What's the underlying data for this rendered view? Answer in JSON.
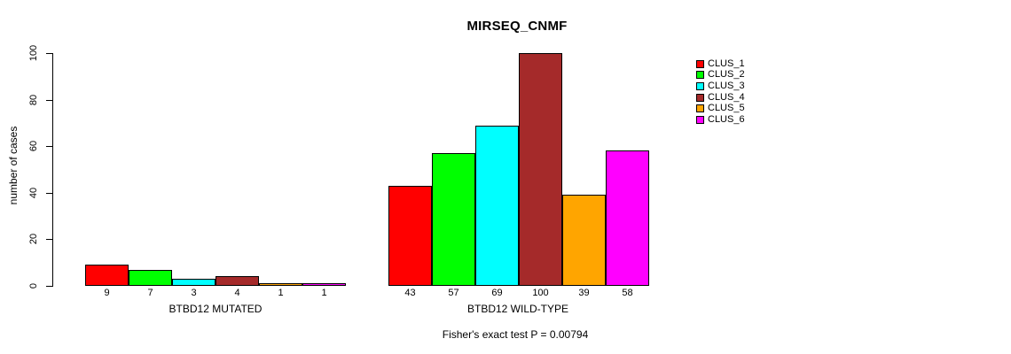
{
  "chart_data": {
    "type": "bar",
    "title": "MIRSEQ_CNMF",
    "ylabel": "number of cases",
    "ylim": [
      0,
      100
    ],
    "yticks": [
      0,
      20,
      40,
      60,
      80,
      100
    ],
    "grid": false,
    "legend_position": "right",
    "series": [
      {
        "name": "CLUS_1",
        "color": "#FF0000"
      },
      {
        "name": "CLUS_2",
        "color": "#00FF00"
      },
      {
        "name": "CLUS_3",
        "color": "#00FFFF"
      },
      {
        "name": "CLUS_4",
        "color": "#A52A2A"
      },
      {
        "name": "CLUS_5",
        "color": "#FFA500"
      },
      {
        "name": "CLUS_6",
        "color": "#FF00FF"
      }
    ],
    "groups": [
      {
        "label": "BTBD12 MUTATED",
        "values": [
          9,
          7,
          3,
          4,
          1,
          1
        ]
      },
      {
        "label": "BTBD12 WILD-TYPE",
        "values": [
          43,
          57,
          69,
          100,
          39,
          58
        ]
      }
    ],
    "footnote": "Fisher's exact test P = 0.00794"
  }
}
